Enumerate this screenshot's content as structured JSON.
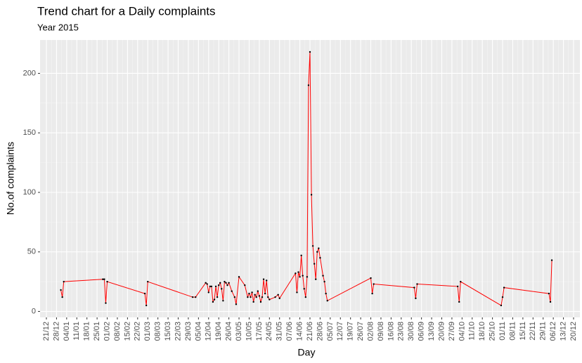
{
  "chart_data": {
    "type": "line",
    "title": "Trend chart for a Daily complaints",
    "subtitle": "Year 2015",
    "x_label": "Day",
    "y_label": "No.of complaints",
    "x": [
      "31/12",
      "01/01",
      "02/01",
      "29/01",
      "30/01",
      "31/01",
      "01/02",
      "27/02",
      "28/02",
      "01/03",
      "01/04",
      "03/04",
      "10/04",
      "11/04",
      "12/04",
      "13/04",
      "14/04",
      "15/04",
      "16/04",
      "17/04",
      "18/04",
      "19/04",
      "20/04",
      "21/04",
      "22/04",
      "23/04",
      "24/04",
      "25/04",
      "26/04",
      "28/04",
      "30/04",
      "01/05",
      "03/05",
      "07/05",
      "09/05",
      "10/05",
      "11/05",
      "12/05",
      "13/05",
      "14/05",
      "15/05",
      "16/05",
      "17/05",
      "18/05",
      "19/05",
      "20/05",
      "21/05",
      "22/05",
      "23/05",
      "24/05",
      "28/05",
      "30/05",
      "31/05",
      "11/06",
      "12/06",
      "13/06",
      "14/06",
      "15/06",
      "16/06",
      "17/06",
      "18/06",
      "19/06",
      "20/06",
      "21/06",
      "22/06",
      "23/06",
      "24/06",
      "25/06",
      "26/06",
      "27/06",
      "28/06",
      "30/06",
      "01/07",
      "02/07",
      "03/07",
      "02/08",
      "03/08",
      "04/08",
      "01/09",
      "02/09",
      "03/09",
      "01/10",
      "02/10",
      "03/10",
      "31/10",
      "01/11",
      "02/11",
      "03/12",
      "04/12",
      "05/12"
    ],
    "values": [
      18,
      12,
      25,
      27,
      27,
      7,
      25,
      15,
      5,
      25,
      12,
      12,
      24,
      23,
      16,
      21,
      21,
      8,
      10,
      21,
      12,
      22,
      24,
      19,
      9,
      25,
      24,
      22,
      24,
      17,
      12,
      6,
      29,
      22,
      12,
      15,
      12,
      16,
      8,
      14,
      12,
      17,
      13,
      8,
      12,
      27,
      15,
      26,
      12,
      10,
      12,
      14,
      11,
      32,
      16,
      33,
      29,
      47,
      30,
      19,
      12,
      29,
      190,
      218,
      98,
      55,
      40,
      27,
      50,
      53,
      45,
      30,
      25,
      15,
      9,
      28,
      15,
      23,
      20,
      11,
      23,
      21,
      8,
      25,
      5,
      12,
      20,
      15,
      8,
      43
    ],
    "color": "#ff0000",
    "point_color": "#000000",
    "xlim": [
      "21/12",
      "20/12"
    ],
    "xticks": [
      "21/12",
      "28/12",
      "04/01",
      "11/01",
      "18/01",
      "25/01",
      "01/02",
      "08/02",
      "15/02",
      "22/02",
      "01/03",
      "08/03",
      "15/03",
      "22/03",
      "29/03",
      "05/04",
      "12/04",
      "19/04",
      "26/04",
      "03/05",
      "10/05",
      "17/05",
      "24/05",
      "31/05",
      "07/06",
      "14/06",
      "21/06",
      "28/06",
      "05/07",
      "12/07",
      "19/07",
      "26/07",
      "02/08",
      "09/08",
      "16/08",
      "23/08",
      "30/08",
      "06/09",
      "13/09",
      "20/09",
      "27/09",
      "04/10",
      "11/10",
      "18/10",
      "25/10",
      "01/11",
      "08/11",
      "15/11",
      "22/11",
      "29/11",
      "06/12",
      "13/12",
      "20/12"
    ],
    "ylim": [
      -5,
      228
    ],
    "yticks": [
      0,
      50,
      100,
      150,
      200
    ],
    "grid": true
  }
}
